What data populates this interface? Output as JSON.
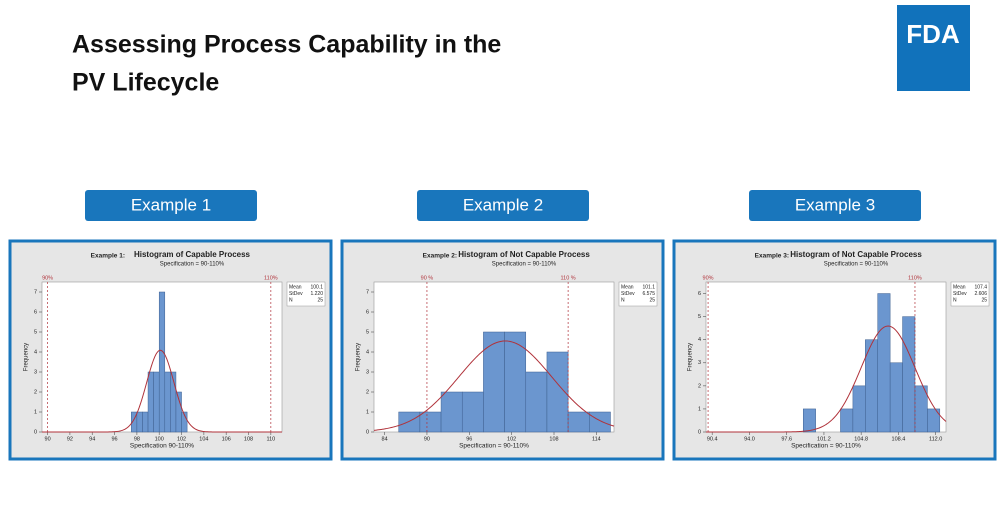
{
  "title_lines": [
    "Assessing Process Capability in the",
    "PV Lifecycle"
  ],
  "logo": "FDA",
  "buttons": [
    "Example 1",
    "Example 2",
    "Example 3"
  ],
  "chart_data": [
    {
      "type": "histogram",
      "tag": "Example 1:",
      "title": "Histogram of Capable Process",
      "subtitle": "Specification = 90-110%",
      "xlabel": "Specification 90-110%",
      "ylabel": "Frequency",
      "color": "#6b96cf",
      "curve_color": "#b0323a",
      "bins": [
        97.5,
        98,
        98.5,
        99,
        99.5,
        100,
        100.5,
        101,
        101.5,
        102,
        102.5
      ],
      "counts": [
        1,
        1,
        1,
        3,
        3,
        7,
        3,
        3,
        2,
        1
      ],
      "xlim": [
        89.5,
        111
      ],
      "xticks": [
        90,
        92,
        94,
        96,
        98,
        100,
        102,
        104,
        106,
        108,
        110
      ],
      "ylim": [
        0,
        7.5
      ],
      "yticks": [
        0,
        1,
        2,
        3,
        4,
        5,
        6,
        7
      ],
      "spec_limits": [
        {
          "value": 90,
          "label": "90%"
        },
        {
          "value": 110,
          "label": "110%"
        }
      ],
      "stats": [
        {
          "name": "Mean",
          "value": 100.1
        },
        {
          "name": "StDev",
          "value": 1.22,
          "label": "1.220"
        },
        {
          "name": "N",
          "value": 25
        }
      ]
    },
    {
      "type": "histogram",
      "tag": "Example 2:",
      "title": "Histogram of Not Capable Process",
      "subtitle": "Specification = 90-110%",
      "xlabel": "Specification = 90-110%",
      "ylabel": "Frequency",
      "color": "#6b96cf",
      "curve_color": "#b0323a",
      "bins": [
        86,
        89,
        92,
        95,
        98,
        101,
        104,
        107,
        110,
        113,
        116
      ],
      "counts": [
        1,
        1,
        2,
        2,
        5,
        5,
        3,
        4,
        1,
        1
      ],
      "xlim": [
        82.5,
        116.5
      ],
      "xticks": [
        84,
        90,
        96,
        102,
        108,
        114
      ],
      "ylim": [
        0,
        7.5
      ],
      "yticks": [
        0,
        1,
        2,
        3,
        4,
        5,
        6,
        7
      ],
      "spec_limits": [
        {
          "value": 90,
          "label": "90 %"
        },
        {
          "value": 110,
          "label": "110 %"
        }
      ],
      "stats": [
        {
          "name": "Mean",
          "value": 101.1
        },
        {
          "name": "StDev",
          "value": 6.575
        },
        {
          "name": "N",
          "value": 25
        }
      ]
    },
    {
      "type": "histogram",
      "tag": "Example 3:",
      "title": "Histogram of Not Capable Process",
      "subtitle": "Specification = 90-110%",
      "xlabel": "Specification = 90-110%",
      "ylabel": "Frequency",
      "color": "#6b96cf",
      "curve_color": "#b0323a",
      "bins": [
        99.2,
        100.4,
        101.6,
        102.8,
        104,
        105.2,
        106.4,
        107.6,
        108.8,
        110,
        111.2,
        112.4
      ],
      "counts": [
        1,
        0,
        0,
        1,
        2,
        4,
        6,
        3,
        5,
        2,
        1
      ],
      "xlim": [
        89.8,
        113
      ],
      "xticks": [
        90.4,
        {
          "value": 94,
          "label": "94.0"
        },
        97.6,
        101.2,
        104.8,
        108.4,
        {
          "value": 112,
          "label": "112.0"
        }
      ],
      "ylim": [
        0,
        6.5
      ],
      "yticks": [
        0,
        1,
        2,
        3,
        4,
        5,
        6
      ],
      "spec_limits": [
        {
          "value": 90,
          "label": "90%"
        },
        {
          "value": 110,
          "label": "110%"
        }
      ],
      "stats": [
        {
          "name": "Mean",
          "value": 107.4
        },
        {
          "name": "StDev",
          "value": 2.606
        },
        {
          "name": "N",
          "value": 25
        }
      ]
    }
  ]
}
